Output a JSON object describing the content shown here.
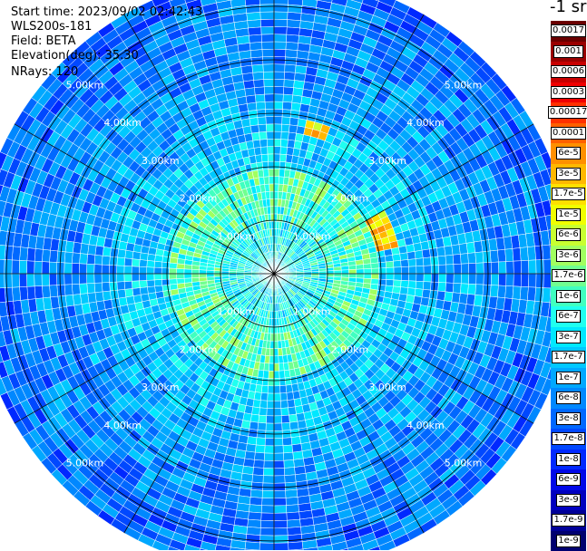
{
  "info": {
    "start_time": "Start time: 2023/09/02 02:42:43",
    "instrument": "WLS200s-181",
    "field": "Field: BETA",
    "elevation": "Elevation(deg): 35.30",
    "nrays": "NRays: 120"
  },
  "chart_data": {
    "type": "heatmap",
    "projection": "polar-ppi",
    "field": "BETA",
    "units": "sr",
    "nrays": 120,
    "range_rings": [
      {
        "range_km": 1,
        "label": "1.00km"
      },
      {
        "range_km": 2,
        "label": "2.00km"
      },
      {
        "range_km": 3,
        "label": "3.00km"
      },
      {
        "range_km": 4,
        "label": "4.00km"
      },
      {
        "range_km": 5,
        "label": "5.00km"
      }
    ],
    "max_range_km": 5.6,
    "spokes_deg": [
      0,
      30,
      60,
      90,
      120,
      150,
      180,
      210,
      240,
      270,
      300,
      330
    ],
    "colorbar": {
      "title": "-1 sr",
      "levels": [
        {
          "label": "0.0017",
          "color": "#6a0000"
        },
        {
          "label": "0.001",
          "color": "#9a0000"
        },
        {
          "label": "0.0006",
          "color": "#c80000"
        },
        {
          "label": "0.0003",
          "color": "#f00000"
        },
        {
          "label": "0.00017",
          "color": "#ff3000"
        },
        {
          "label": "0.0001",
          "color": "#ff6000"
        },
        {
          "label": "6e-5",
          "color": "#ff9000"
        },
        {
          "label": "3e-5",
          "color": "#ffb800"
        },
        {
          "label": "1.7e-5",
          "color": "#ffe000"
        },
        {
          "label": "1e-5",
          "color": "#f0ff00"
        },
        {
          "label": "6e-6",
          "color": "#c8ff30"
        },
        {
          "label": "3e-6",
          "color": "#a0ff60"
        },
        {
          "label": "1.7e-6",
          "color": "#70ff90"
        },
        {
          "label": "1e-6",
          "color": "#40ffc0"
        },
        {
          "label": "6e-7",
          "color": "#20fff0"
        },
        {
          "label": "3e-7",
          "color": "#00e8ff"
        },
        {
          "label": "1.7e-7",
          "color": "#00c8ff"
        },
        {
          "label": "1e-7",
          "color": "#00a8ff"
        },
        {
          "label": "6e-8",
          "color": "#0088ff"
        },
        {
          "label": "3e-8",
          "color": "#0068ff"
        },
        {
          "label": "1.7e-8",
          "color": "#0048ff"
        },
        {
          "label": "1e-8",
          "color": "#0028ff"
        },
        {
          "label": "6e-9",
          "color": "#0008e8"
        },
        {
          "label": "3e-9",
          "color": "#0000c0"
        },
        {
          "label": "1.7e-9",
          "color": "#000098"
        },
        {
          "label": "1e-9",
          "color": "#000070"
        }
      ]
    }
  }
}
